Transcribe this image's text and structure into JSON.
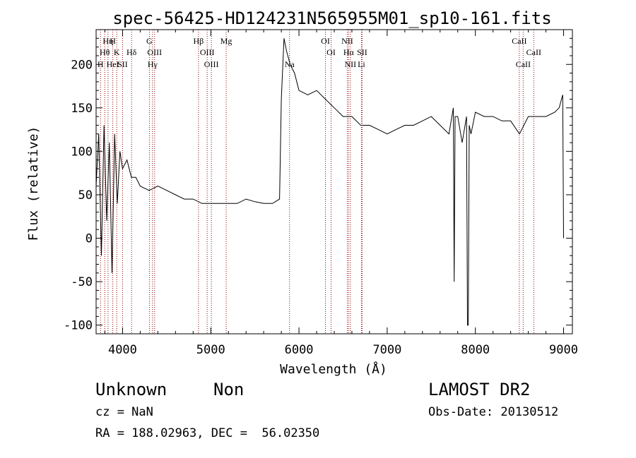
{
  "chart_data": {
    "type": "line",
    "title": "spec-56425-HD124231N565955M01_sp10-161.fits",
    "xlabel": "Wavelength (Å)",
    "ylabel": "Flux (relative)",
    "xlim": [
      3700,
      9100
    ],
    "ylim": [
      -110,
      240
    ],
    "xticks": [
      4000,
      5000,
      6000,
      7000,
      8000,
      9000
    ],
    "yticks": [
      -100,
      -50,
      0,
      50,
      100,
      150,
      200
    ],
    "grid": false,
    "line_color": "#000000",
    "marker_color": "#8b0000",
    "spectrum": {
      "x": [
        3700,
        3730,
        3760,
        3790,
        3820,
        3850,
        3880,
        3910,
        3940,
        3970,
        4000,
        4050,
        4100,
        4150,
        4200,
        4300,
        4400,
        4500,
        4600,
        4700,
        4800,
        4900,
        5000,
        5100,
        5200,
        5300,
        5400,
        5500,
        5600,
        5700,
        5780,
        5800,
        5830,
        5860,
        5900,
        5950,
        6000,
        6100,
        6200,
        6300,
        6400,
        6500,
        6600,
        6700,
        6800,
        6900,
        7000,
        7100,
        7200,
        7300,
        7400,
        7500,
        7600,
        7700,
        7750,
        7760,
        7770,
        7800,
        7850,
        7900,
        7910,
        7920,
        7930,
        7950,
        8000,
        8100,
        8200,
        8300,
        8400,
        8500,
        8600,
        8700,
        8800,
        8900,
        8950,
        8990,
        9000
      ],
      "y": [
        60,
        120,
        -20,
        130,
        20,
        110,
        -40,
        120,
        40,
        100,
        80,
        90,
        70,
        70,
        60,
        55,
        60,
        55,
        50,
        45,
        45,
        40,
        40,
        40,
        40,
        40,
        45,
        42,
        40,
        40,
        45,
        160,
        230,
        215,
        200,
        190,
        170,
        165,
        170,
        160,
        150,
        140,
        140,
        130,
        130,
        125,
        120,
        125,
        130,
        130,
        135,
        140,
        130,
        120,
        150,
        -50,
        140,
        140,
        110,
        140,
        -100,
        -100,
        130,
        120,
        145,
        140,
        140,
        135,
        135,
        120,
        140,
        140,
        140,
        145,
        150,
        165,
        0
      ]
    },
    "lines": [
      {
        "label": "Hη",
        "x": 3835,
        "row": 0
      },
      {
        "label": "H",
        "x": 3889,
        "row": 0
      },
      {
        "label": "Hθ",
        "x": 3798,
        "row": 1
      },
      {
        "label": "K",
        "x": 3934,
        "row": 1
      },
      {
        "label": "Hδ",
        "x": 4102,
        "row": 1
      },
      {
        "label": "H",
        "x": 3750,
        "row": 2
      },
      {
        "label": "HeI",
        "x": 3889,
        "row": 2
      },
      {
        "label": "SII",
        "x": 4000,
        "row": 2
      },
      {
        "label": "G",
        "x": 4304,
        "row": 0
      },
      {
        "label": "OIII",
        "x": 4363,
        "row": 1
      },
      {
        "label": "Hγ",
        "x": 4340,
        "row": 2
      },
      {
        "label": "Hβ",
        "x": 4861,
        "row": 0
      },
      {
        "label": "OIII",
        "x": 4959,
        "row": 1
      },
      {
        "label": "OIII",
        "x": 5007,
        "row": 2
      },
      {
        "label": "Mg",
        "x": 5175,
        "row": 0
      },
      {
        "label": "Na",
        "x": 5893,
        "row": 2
      },
      {
        "label": "OI",
        "x": 6300,
        "row": 0
      },
      {
        "label": "OI",
        "x": 6364,
        "row": 1
      },
      {
        "label": "NII",
        "x": 6548,
        "row": 0
      },
      {
        "label": "Hα",
        "x": 6563,
        "row": 1
      },
      {
        "label": "SII",
        "x": 6716,
        "row": 1
      },
      {
        "label": "NII",
        "x": 6583,
        "row": 2
      },
      {
        "label": "Li",
        "x": 6708,
        "row": 2
      },
      {
        "label": "CaII",
        "x": 8498,
        "row": 0
      },
      {
        "label": "CaII",
        "x": 8662,
        "row": 1
      },
      {
        "label": "CaII",
        "x": 8542,
        "row": 2
      }
    ]
  },
  "info": {
    "object": "Unknown",
    "type": "Non",
    "survey": "LAMOST DR2",
    "cz": "cz = NaN",
    "obs_date": "Obs-Date: 20130512",
    "coords": "RA = 188.02963, DEC =  56.02350"
  }
}
